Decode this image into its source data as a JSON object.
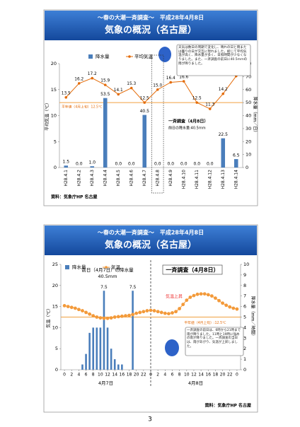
{
  "chart_data": [
    {
      "type": "combo",
      "title": "～春の大潮一斉調査～　平成28年4月8日",
      "subtitle": "気象の概況（名古屋）",
      "categories": [
        "H28.4.1",
        "H28.4.2",
        "H28.4.3",
        "H28.4.4",
        "H28.4.5",
        "H28.4.6",
        "H28.4.7",
        "H28.4.8",
        "H28.4.9",
        "H28.4.10",
        "H28.4.11",
        "H28.4.12",
        "H28.4.13",
        "H28.4.14"
      ],
      "series": [
        {
          "name": "降水量",
          "type": "bar",
          "axis": "y2",
          "color": "#4a7ebb",
          "values": [
            1.5,
            0,
            1,
            53.5,
            0,
            0,
            40.5,
            0,
            0,
            0,
            0,
            0,
            22.5,
            6.5
          ],
          "value_labels": [
            "1.5",
            "0.0",
            "1.0",
            "53.5",
            "0.0",
            "0.0",
            "40.5",
            "0.0",
            "0.0",
            "0.0",
            "0.0",
            "0.0",
            "22.5",
            "6.5"
          ]
        },
        {
          "name": "平均気温",
          "type": "line",
          "color": "#e46c0a",
          "values": [
            13.5,
            16.2,
            17.2,
            15.9,
            14.1,
            15.3,
            12.5,
            15.0,
            16.4,
            16.6,
            12.5,
            11.3,
            14.2,
            17.6
          ],
          "value_labels": [
            "13.5",
            "16.2",
            "17.2",
            "15.9",
            "14.1",
            "15.3",
            "12.5",
            "15.0",
            "16.4",
            "16.6",
            "12.5",
            "11.3",
            "14.2",
            "17.6"
          ]
        }
      ],
      "ylim": [
        0,
        20
      ],
      "yticks": [
        0,
        5,
        10,
        15,
        20
      ],
      "y2lim": [
        0,
        80
      ],
      "y2ticks": [
        0,
        10,
        20,
        30,
        40,
        50,
        60,
        70,
        80
      ],
      "ylabel": "平均気温（℃）",
      "y2label": "降水量（mm／日）",
      "legend_position": "top",
      "grid": false,
      "reference_line": {
        "value": 12.5,
        "label": "平年値（4月上旬）12.5℃"
      },
      "notes": [
        "天気は数日の周期で変化し、晴れの日と雨または曇りの日が交互に現れました。総じて平均気温が高く、降水量が多く、日照時間が少なくなりました。また、一斉調査の前日に40.5mmの雨が降りました。",
        "一斉調査（4月8日）",
        "前日の降水量:40.5mm"
      ],
      "source": "資料：気象庁HP 名古屋"
    },
    {
      "type": "combo",
      "title": "～春の大潮一斉調査～　平成28年4月8日",
      "subtitle": "気象の概況（名古屋）",
      "x": [
        0,
        1,
        2,
        3,
        4,
        5,
        6,
        7,
        8,
        9,
        10,
        11,
        12,
        13,
        14,
        15,
        16,
        17,
        18,
        19,
        20,
        21,
        22,
        23,
        24,
        25,
        26,
        27,
        28,
        29,
        30,
        31,
        32,
        33,
        34,
        35,
        36,
        37,
        38,
        39,
        40,
        41,
        42,
        43,
        44,
        45,
        46,
        47,
        48
      ],
      "series": [
        {
          "name": "降水量",
          "type": "bar",
          "axis": "y2",
          "color": "#4a7ebb",
          "values": [
            0,
            0,
            0,
            0,
            0,
            0.5,
            1.5,
            3.5,
            4,
            4,
            4,
            7.5,
            4,
            2,
            1,
            0.5,
            0.5,
            0,
            0,
            7.5,
            0,
            0,
            0,
            0,
            0,
            0,
            0,
            0,
            0,
            0,
            0,
            0,
            0,
            0,
            0,
            0,
            0,
            0,
            0,
            0,
            0,
            0,
            0,
            0,
            0,
            0,
            0,
            0,
            0
          ],
          "value_labels": [
            null,
            null,
            null,
            null,
            null,
            null,
            null,
            null,
            null,
            null,
            null,
            "7.5",
            null,
            null,
            null,
            null,
            null,
            null,
            null,
            "7.5",
            null,
            null,
            null,
            null,
            null,
            null,
            null,
            null,
            null,
            null,
            null,
            null,
            null,
            null,
            null,
            null,
            null,
            null,
            null,
            null,
            null,
            null,
            null,
            null,
            null,
            null,
            null,
            null,
            null
          ]
        },
        {
          "name": "気温",
          "type": "line",
          "color": "#f39a3a",
          "values": [
            15.2,
            15.0,
            14.8,
            14.6,
            14.3,
            14.0,
            13.6,
            13.2,
            12.8,
            12.5,
            12.3,
            12.2,
            12.2,
            12.3,
            12.5,
            12.6,
            12.7,
            12.8,
            12.9,
            13.1,
            13.4,
            13.6,
            13.8,
            14.0,
            14.1,
            14.0,
            13.8,
            13.6,
            13.4,
            13.3,
            13.5,
            13.8,
            14.5,
            15.5,
            16.5,
            17.2,
            17.6,
            17.9,
            18.0,
            18.0,
            17.8,
            17.5,
            17.0,
            16.4,
            15.8,
            15.3,
            14.9,
            14.6,
            14.4
          ]
        }
      ],
      "xlim": [
        -1,
        49
      ],
      "xticks": [
        0,
        2,
        4,
        6,
        8,
        10,
        12,
        14,
        16,
        18,
        20,
        22,
        {
          "value": 24,
          "label": "0"
        },
        {
          "value": 26,
          "label": "2"
        },
        {
          "value": 28,
          "label": "4"
        },
        {
          "value": 30,
          "label": "6"
        },
        {
          "value": 32,
          "label": "8"
        },
        {
          "value": 34,
          "label": "10"
        },
        {
          "value": 36,
          "label": "12"
        },
        {
          "value": 38,
          "label": "14"
        },
        {
          "value": 40,
          "label": "16"
        },
        {
          "value": 42,
          "label": "18"
        },
        {
          "value": 44,
          "label": "20"
        },
        {
          "value": 46,
          "label": "22"
        },
        {
          "value": 48,
          "label": "0"
        }
      ],
      "x_groups": [
        "4月7日",
        "4月8日"
      ],
      "ylim": [
        0,
        25
      ],
      "yticks": [
        0,
        5,
        10,
        15,
        20,
        25
      ],
      "y2lim": [
        0,
        10
      ],
      "y2ticks": [
        0,
        1,
        2,
        3,
        4,
        5,
        6,
        7,
        8,
        9,
        10
      ],
      "ylabel": "気温（℃）",
      "y2label": "降水量（mm／時間）",
      "legend_position": "top-left",
      "grid": false,
      "reference_line": {
        "value": 12.5,
        "label": "平年値（4月上旬）:12.5℃"
      },
      "notes": [
        "前日（4月7日）の降水量",
        "40.5mm",
        "一斉調査（4月8日）",
        "気温上昇",
        "一斉調査の前日は、6時から21時まで雨が降りました。11時と19時に強めの雨が降りました。一斉調査の当日は、雨があがり、気温が上昇しました。"
      ],
      "source": "資料：気象庁HP 名古屋"
    }
  ],
  "page_number": "3"
}
